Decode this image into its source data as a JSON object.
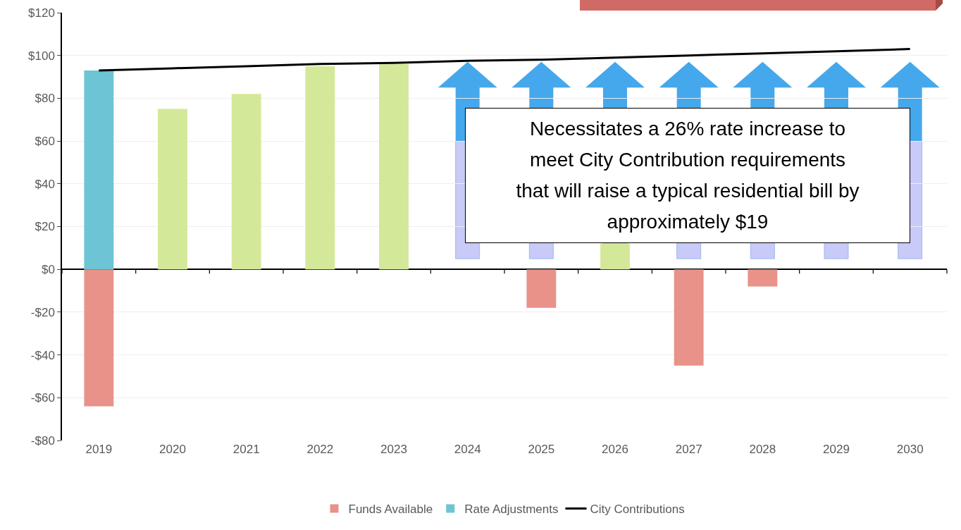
{
  "chart_data": {
    "type": "bar",
    "stacked": true,
    "categories": [
      "2019",
      "2020",
      "2021",
      "2022",
      "2023",
      "2024",
      "2025",
      "2026",
      "2027",
      "2028",
      "2029",
      "2030"
    ],
    "series": [
      {
        "name": "Funds Available",
        "color": "#e8928a",
        "colors": [
          "#e8928a",
          "#d4e89a",
          "#d4e89a",
          "#d4e89a",
          "#d4e89a",
          "#d4e89a",
          "#e8928a",
          "#d4e89a",
          "#e8928a",
          "#e8928a",
          "#e8928a",
          "#e8928a"
        ],
        "values": [
          -64,
          75,
          82,
          95,
          96,
          null,
          -18,
          12,
          -45,
          -8,
          null,
          null
        ]
      },
      {
        "name": "Rate Adjustments",
        "color": "#6cc4d4",
        "values": [
          93,
          null,
          null,
          null,
          null,
          null,
          null,
          null,
          null,
          null,
          null,
          null
        ]
      },
      {
        "name": "City Contributions",
        "type": "line",
        "color": "#000000",
        "values": [
          93,
          94,
          95,
          96,
          96.5,
          97.5,
          98,
          99,
          100,
          101,
          102,
          103
        ]
      }
    ],
    "ylim": [
      -80,
      120
    ],
    "yticks": [
      {
        "value": -80,
        "label": "-$80"
      },
      {
        "value": -60,
        "label": "-$60"
      },
      {
        "value": -40,
        "label": "-$40"
      },
      {
        "value": -20,
        "label": "-$20"
      },
      {
        "value": 0,
        "label": "$0"
      },
      {
        "value": 20,
        "label": "$20"
      },
      {
        "value": 40,
        "label": "$40"
      },
      {
        "value": 60,
        "label": "$60"
      },
      {
        "value": 80,
        "label": "$80"
      },
      {
        "value": 100,
        "label": "$100"
      },
      {
        "value": 120,
        "label": "$120"
      }
    ],
    "grid": "y",
    "legend": "bottom",
    "marker": "none",
    "line_style": "solid",
    "annotations": [
      "Necessitates a 26% rate increase to\nmeet City Contribution requirements\nthat will raise a typical residential bill by\napproximately $19"
    ]
  }
}
